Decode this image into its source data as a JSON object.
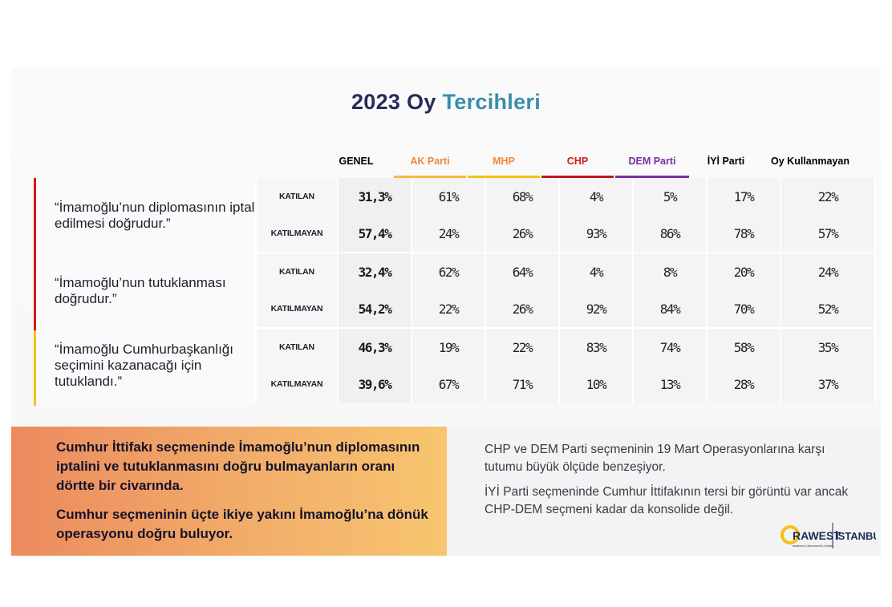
{
  "title": {
    "main": "2023 Oy ",
    "accent": "Tercihleri"
  },
  "columns": [
    {
      "label": "GENEL",
      "color": "#1a1a1a",
      "bar": ""
    },
    {
      "label": "AK Parti",
      "color": "#f0883a",
      "bar": "#f5b84a"
    },
    {
      "label": "MHP",
      "color": "#f0883a",
      "bar": "#f3c317"
    },
    {
      "label": "CHP",
      "color": "#d11a1a",
      "bar": "#c8161d"
    },
    {
      "label": "DEM Parti",
      "color": "#7b2fa8",
      "bar": "#7b2fa8"
    },
    {
      "label": "İYİ Parti",
      "color": "#1a1a1a",
      "bar": ""
    },
    {
      "label": "Oy Kullanmayan",
      "color": "#1a1a1a",
      "bar": ""
    }
  ],
  "statements": [
    {
      "text": "“İmamoğlu’nun diplomasının iptal edilmesi doğrudur.”",
      "bar_color": "#d11a1a",
      "rows": [
        {
          "label": "KATILAN",
          "values": [
            "31,3%",
            "61%",
            "68%",
            "4%",
            "5%",
            "17%",
            "22%"
          ]
        },
        {
          "label": "KATILMAYAN",
          "values": [
            "57,4%",
            "24%",
            "26%",
            "93%",
            "86%",
            "78%",
            "57%"
          ]
        }
      ]
    },
    {
      "text": "“İmamoğlu’nun tutuklanması doğrudur.”",
      "bar_color": "#d11a1a",
      "rows": [
        {
          "label": "KATILAN",
          "values": [
            "32,4%",
            "62%",
            "64%",
            "4%",
            "8%",
            "20%",
            "24%"
          ]
        },
        {
          "label": "KATILMAYAN",
          "values": [
            "54,2%",
            "22%",
            "26%",
            "92%",
            "84%",
            "70%",
            "52%"
          ]
        }
      ]
    },
    {
      "text": "“İmamoğlu Cumhurbaşkanlığı seçimini kazanacağı için tutuklandı.”",
      "bar_color": "#f3c317",
      "rows": [
        {
          "label": "KATILAN",
          "values": [
            "46,3%",
            "19%",
            "22%",
            "83%",
            "74%",
            "58%",
            "35%"
          ]
        },
        {
          "label": "KATILMAYAN",
          "values": [
            "39,6%",
            "67%",
            "71%",
            "10%",
            "13%",
            "28%",
            "37%"
          ]
        }
      ]
    }
  ],
  "summary_left": [
    "Cumhur İttifakı seçmeninde İmamoğlu’nun diplomasının iptalini ve tutuklanmasını doğru bulmayanların oranı dörtte bir civarında.",
    "Cumhur seçmeninin üçte ikiye yakını İmamoğlu’na dönük operasyonu doğru buluyor."
  ],
  "summary_right": [
    "CHP ve DEM Parti seçmeninin 19 Mart Operasyonlarına karşı tutumu büyük ölçüde benzeşiyor.",
    "İYİ Parti seçmeninde Cumhur İttifakının tersi bir görüntü var ancak CHP-DEM seçmeni kadar da konsolide değil."
  ],
  "logo": {
    "brand1": "RAWEST",
    "brand2": "İSTANBUL",
    "tagline": "araştırma | danışmanlık | iletişim"
  }
}
